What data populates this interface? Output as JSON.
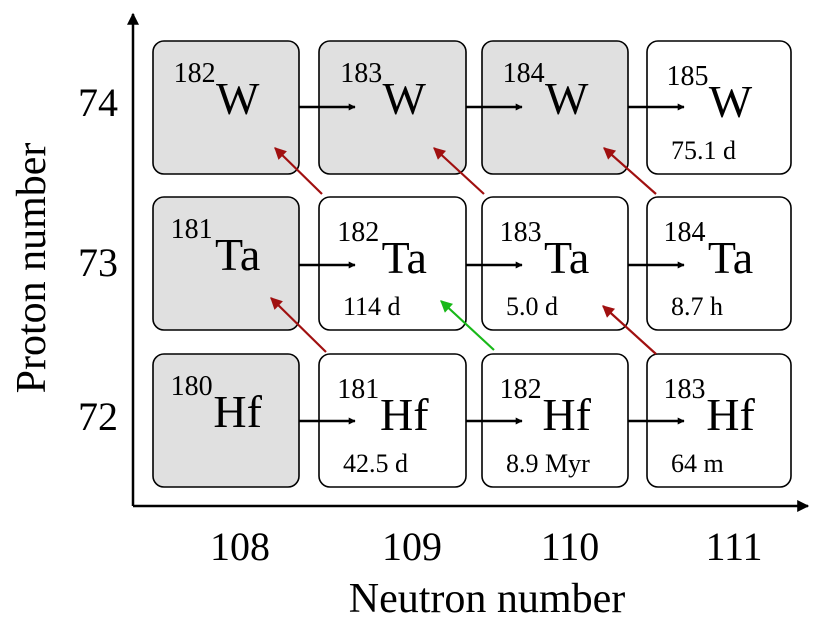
{
  "axes": {
    "x_label": "Neutron number",
    "y_label": "Proton number",
    "x_ticks": [
      "108",
      "109",
      "110",
      "111"
    ],
    "y_ticks": [
      "74",
      "73",
      "72"
    ]
  },
  "colors": {
    "stable_fill": "#e0e0e0",
    "unstable_fill": "#ffffff",
    "capture_arrow": "#000000",
    "beta_arrow": "#a01010",
    "green_arrow": "#18b818"
  },
  "nuclides": [
    {
      "mass": "182",
      "symbol": "W",
      "halflife": "",
      "stable": true,
      "row": 0,
      "col": 0
    },
    {
      "mass": "183",
      "symbol": "W",
      "halflife": "",
      "stable": true,
      "row": 0,
      "col": 1
    },
    {
      "mass": "184",
      "symbol": "W",
      "halflife": "",
      "stable": true,
      "row": 0,
      "col": 2
    },
    {
      "mass": "185",
      "symbol": "W",
      "halflife": "75.1 d",
      "stable": false,
      "row": 0,
      "col": 3
    },
    {
      "mass": "181",
      "symbol": "Ta",
      "halflife": "",
      "stable": true,
      "row": 1,
      "col": 0
    },
    {
      "mass": "182",
      "symbol": "Ta",
      "halflife": "114 d",
      "stable": false,
      "row": 1,
      "col": 1
    },
    {
      "mass": "183",
      "symbol": "Ta",
      "halflife": "5.0 d",
      "stable": false,
      "row": 1,
      "col": 2
    },
    {
      "mass": "184",
      "symbol": "Ta",
      "halflife": "8.7 h",
      "stable": false,
      "row": 1,
      "col": 3
    },
    {
      "mass": "180",
      "symbol": "Hf",
      "halflife": "",
      "stable": true,
      "row": 2,
      "col": 0
    },
    {
      "mass": "181",
      "symbol": "Hf",
      "halflife": "42.5 d",
      "stable": false,
      "row": 2,
      "col": 1
    },
    {
      "mass": "182",
      "symbol": "Hf",
      "halflife": "8.9 Myr",
      "stable": false,
      "row": 2,
      "col": 2
    },
    {
      "mass": "183",
      "symbol": "Hf",
      "halflife": "64 m",
      "stable": false,
      "row": 2,
      "col": 3
    }
  ]
}
